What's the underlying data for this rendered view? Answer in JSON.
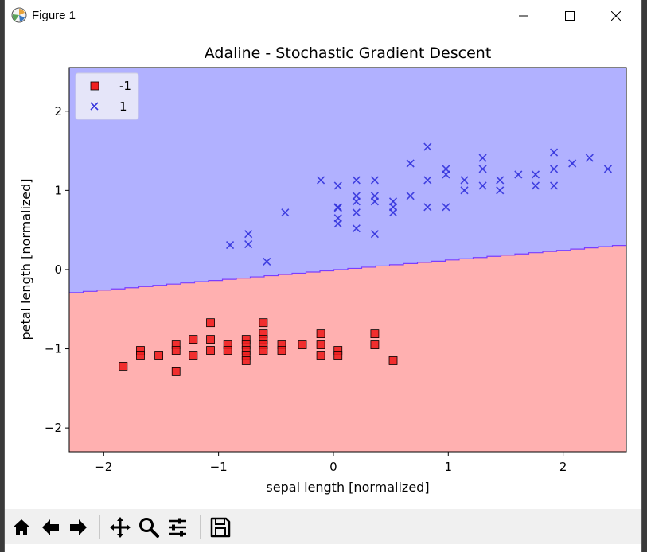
{
  "window": {
    "title": "Figure 1"
  },
  "toolbar": {
    "buttons": [
      "home-icon",
      "back-icon",
      "forward-icon",
      "pan-icon",
      "zoom-icon",
      "configure-subplots-icon",
      "save-icon"
    ]
  },
  "colors": {
    "region_pos": "#b1b1ff",
    "region_neg": "#ffb0b0",
    "boundary": "#7a3dff",
    "marker_neg": "#f02020",
    "marker_pos": "#3333dd"
  },
  "chart_data": {
    "type": "scatter",
    "title": "Adaline - Stochastic Gradient Descent",
    "xlabel": "sepal length [normalized]",
    "ylabel": "petal length [normalized]",
    "xlim": [
      -2.3,
      2.55
    ],
    "ylim": [
      -2.3,
      2.55
    ],
    "xticks": [
      -2,
      -1,
      0,
      1,
      2
    ],
    "yticks": [
      -2,
      -1,
      0,
      1,
      2
    ],
    "xtick_labels": [
      "−2",
      "−1",
      "0",
      "1",
      "2"
    ],
    "ytick_labels": [
      "−2",
      "−1",
      "0",
      "1",
      "2"
    ],
    "legend_position": "upper left",
    "legend": [
      {
        "label": "-1",
        "marker": "square"
      },
      {
        "label": "1",
        "marker": "x"
      }
    ],
    "decision_boundary": {
      "x": [
        -2.3,
        2.55
      ],
      "y": [
        -0.29,
        0.32
      ]
    },
    "series": [
      {
        "name": "-1",
        "marker": "square",
        "points": [
          [
            -1.83,
            -1.22
          ],
          [
            -1.68,
            -1.02
          ],
          [
            -1.68,
            -1.08
          ],
          [
            -1.52,
            -1.08
          ],
          [
            -1.37,
            -0.95
          ],
          [
            -1.37,
            -1.02
          ],
          [
            -1.37,
            -1.29
          ],
          [
            -1.22,
            -0.88
          ],
          [
            -1.22,
            -1.08
          ],
          [
            -1.07,
            -0.67
          ],
          [
            -1.07,
            -0.88
          ],
          [
            -1.07,
            -1.02
          ],
          [
            -0.92,
            -0.95
          ],
          [
            -0.92,
            -1.02
          ],
          [
            -0.76,
            -0.88
          ],
          [
            -0.76,
            -0.95
          ],
          [
            -0.76,
            -1.02
          ],
          [
            -0.76,
            -1.08
          ],
          [
            -0.76,
            -1.15
          ],
          [
            -0.61,
            -0.67
          ],
          [
            -0.61,
            -0.81
          ],
          [
            -0.61,
            -0.88
          ],
          [
            -0.61,
            -0.95
          ],
          [
            -0.61,
            -1.02
          ],
          [
            -0.45,
            -0.95
          ],
          [
            -0.45,
            -1.02
          ],
          [
            -0.27,
            -0.95
          ],
          [
            -0.11,
            -0.81
          ],
          [
            -0.11,
            -0.95
          ],
          [
            -0.11,
            -1.08
          ],
          [
            0.04,
            -1.02
          ],
          [
            0.04,
            -1.08
          ],
          [
            0.36,
            -0.81
          ],
          [
            0.36,
            -0.95
          ],
          [
            0.52,
            -1.15
          ]
        ]
      },
      {
        "name": "1",
        "marker": "x",
        "points": [
          [
            -0.9,
            0.31
          ],
          [
            -0.74,
            0.45
          ],
          [
            -0.74,
            0.32
          ],
          [
            -0.58,
            0.1
          ],
          [
            -0.42,
            0.72
          ],
          [
            -0.11,
            1.13
          ],
          [
            0.04,
            1.06
          ],
          [
            0.04,
            0.79
          ],
          [
            0.04,
            0.78
          ],
          [
            0.04,
            0.65
          ],
          [
            0.04,
            0.58
          ],
          [
            0.2,
            1.13
          ],
          [
            0.2,
            0.93
          ],
          [
            0.2,
            0.86
          ],
          [
            0.2,
            0.72
          ],
          [
            0.2,
            0.52
          ],
          [
            0.36,
            1.13
          ],
          [
            0.36,
            0.93
          ],
          [
            0.36,
            0.86
          ],
          [
            0.36,
            0.45
          ],
          [
            0.52,
            0.86
          ],
          [
            0.52,
            0.79
          ],
          [
            0.52,
            0.72
          ],
          [
            0.67,
            1.34
          ],
          [
            0.67,
            0.93
          ],
          [
            0.82,
            1.55
          ],
          [
            0.82,
            1.13
          ],
          [
            0.82,
            0.79
          ],
          [
            0.98,
            1.27
          ],
          [
            0.98,
            1.2
          ],
          [
            0.98,
            0.79
          ],
          [
            1.14,
            1.13
          ],
          [
            1.14,
            1.0
          ],
          [
            1.3,
            1.41
          ],
          [
            1.3,
            1.27
          ],
          [
            1.3,
            1.06
          ],
          [
            1.45,
            1.13
          ],
          [
            1.45,
            1.0
          ],
          [
            1.61,
            1.2
          ],
          [
            1.76,
            1.2
          ],
          [
            1.76,
            1.06
          ],
          [
            1.92,
            1.48
          ],
          [
            1.92,
            1.27
          ],
          [
            1.92,
            1.06
          ],
          [
            2.08,
            1.34
          ],
          [
            2.23,
            1.41
          ],
          [
            2.39,
            1.27
          ]
        ]
      }
    ]
  }
}
